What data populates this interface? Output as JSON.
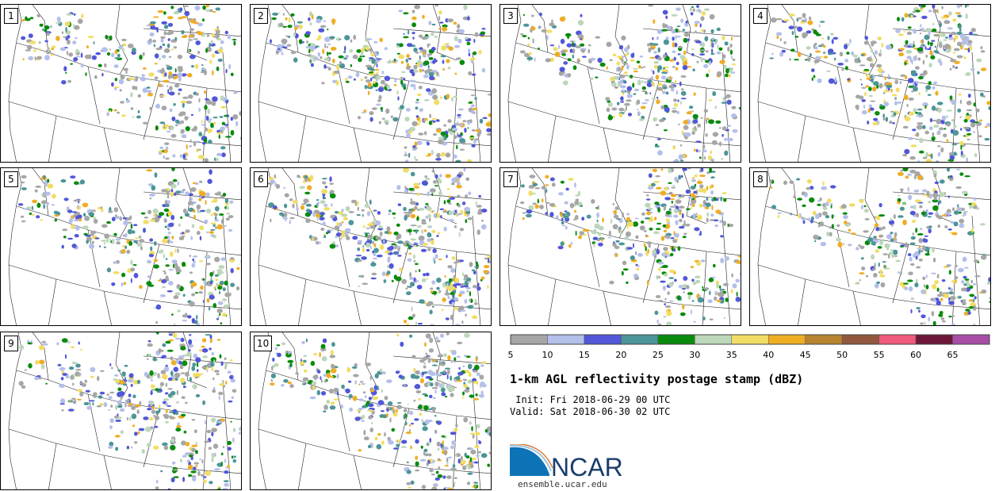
{
  "panels": [
    {
      "label": "1"
    },
    {
      "label": "2"
    },
    {
      "label": "3"
    },
    {
      "label": "4"
    },
    {
      "label": "5"
    },
    {
      "label": "6"
    },
    {
      "label": "7"
    },
    {
      "label": "8"
    },
    {
      "label": "9"
    },
    {
      "label": "10"
    }
  ],
  "colorbar": {
    "bins": [
      5,
      10,
      15,
      20,
      25,
      30,
      35,
      40,
      45,
      50,
      55,
      60,
      65,
      70
    ],
    "tick_labels": [
      "5",
      "10",
      "15",
      "20",
      "25",
      "30",
      "35",
      "40",
      "45",
      "50",
      "55",
      "60",
      "65"
    ],
    "colors": [
      "#a6a6a6",
      "#b4bfea",
      "#5157d8",
      "#4c9598",
      "#098b0d",
      "#bcd7b9",
      "#f1dd64",
      "#efad24",
      "#b88331",
      "#92583d",
      "#f05a7d",
      "#6d1739",
      "#a84ea7"
    ]
  },
  "title": "1-km AGL reflectivity postage stamp (dBZ)",
  "init_line": " Init: Fri 2018-06-29 00 UTC",
  "valid_line": "Valid: Sat 2018-06-30 02 UTC",
  "logo": {
    "text": "NCAR",
    "url": "ensemble.ucar.edu",
    "brand_color": "#1a3d6d",
    "accent_color": "#0d73b7"
  }
}
